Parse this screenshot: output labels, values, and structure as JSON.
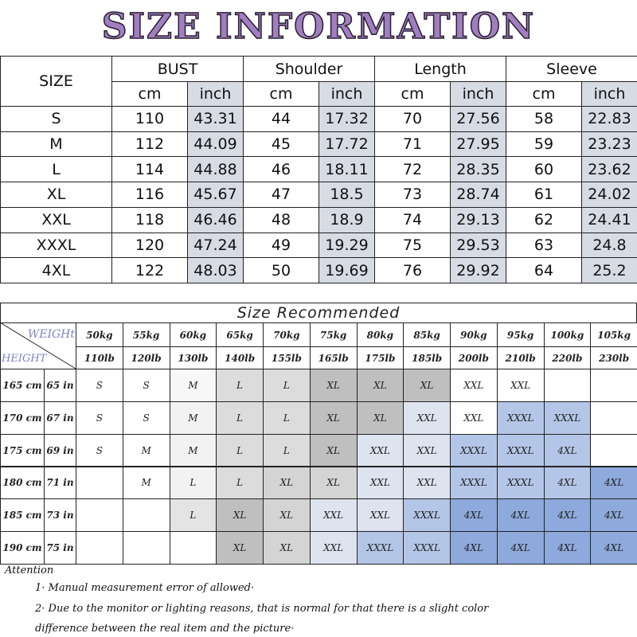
{
  "title": "SIZE INFORMATION",
  "size_table": {
    "size_header": "SIZE",
    "groups": [
      "BUST",
      "Shoulder",
      "Length",
      "Sleeve"
    ],
    "units": [
      "cm",
      "inch"
    ],
    "rows": [
      [
        "S",
        "110",
        "43.31",
        "44",
        "17.32",
        "70",
        "27.56",
        "58",
        "22.83"
      ],
      [
        "M",
        "112",
        "44.09",
        "45",
        "17.72",
        "71",
        "27.95",
        "59",
        "23.23"
      ],
      [
        "L",
        "114",
        "44.88",
        "46",
        "18.11",
        "72",
        "28.35",
        "60",
        "23.62"
      ],
      [
        "XL",
        "116",
        "45.67",
        "47",
        "18.5",
        "73",
        "28.74",
        "61",
        "24.02"
      ],
      [
        "XXL",
        "118",
        "46.46",
        "48",
        "18.9",
        "74",
        "29.13",
        "62",
        "24.41"
      ],
      [
        "XXXL",
        "120",
        "47.24",
        "49",
        "19.29",
        "75",
        "29.53",
        "63",
        "24.8"
      ],
      [
        "4XL",
        "122",
        "48.03",
        "50",
        "19.69",
        "76",
        "29.92",
        "64",
        "25.2"
      ]
    ]
  },
  "recommend": {
    "title": "Size Recommended",
    "weight_label": "WEIGHt",
    "height_label": "HEIGHT",
    "weights_kg": [
      "50kg",
      "55kg",
      "60kg",
      "65kg",
      "70kg",
      "75kg",
      "80kg",
      "85kg",
      "90kg",
      "95kg",
      "100kg",
      "105kg"
    ],
    "weights_lb": [
      "110lb",
      "120lb",
      "130lb",
      "140lb",
      "155lb",
      "165lb",
      "175lb",
      "185lb",
      "200lb",
      "210lb",
      "220lb",
      "230lb"
    ],
    "rows": [
      {
        "cm": "165 cm",
        "in": "65 in",
        "sizes": [
          "S",
          "S",
          "M",
          "L",
          "L",
          "XL",
          "XL",
          "XL",
          "XXL",
          "XXL",
          null,
          null
        ],
        "colors": [
          "#ffffff",
          "#ffffff",
          "#f7f7f7",
          "#dcdcdc",
          "#dcdcdc",
          "#bfbfbf",
          "#bfbfbf",
          "#bfbfbf",
          "#ffffff",
          "#ffffff",
          "#ffffff",
          "#ffffff"
        ]
      },
      {
        "cm": "170 cm",
        "in": "67 in",
        "sizes": [
          "S",
          "S",
          "M",
          "L",
          "L",
          "XL",
          "XL",
          "XXL",
          "XXL",
          "XXXL",
          "XXXL",
          null
        ],
        "colors": [
          "#ffffff",
          "#ffffff",
          "#f2f2f2",
          "#dcdcdc",
          "#dcdcdc",
          "#bfbfbf",
          "#bfbfbf",
          "#dde3ef",
          "#ffffff",
          "#b4c6e7",
          "#b4c6e7",
          "#ffffff"
        ]
      },
      {
        "cm": "175 cm",
        "in": "69 in",
        "sizes": [
          "S",
          "M",
          "M",
          "L",
          "L",
          "XL",
          "XXL",
          "XXL",
          "XXXL",
          "XXXL",
          "4XL",
          null
        ],
        "colors": [
          "#ffffff",
          "#ffffff",
          "#f2f2f2",
          "#dcdcdc",
          "#dcdcdc",
          "#bfbfbf",
          "#dde3ef",
          "#dde3ef",
          "#b4c6e7",
          "#b4c6e7",
          "#b4c6e7",
          "#ffffff"
        ]
      },
      {
        "cm": "180 cm",
        "in": "71 in",
        "sizes": [
          null,
          "M",
          "L",
          "L",
          "XL",
          "XL",
          "XXL",
          "XXL",
          "XXXL",
          "XXXL",
          "4XL",
          "4XL"
        ],
        "colors": [
          "#ffffff",
          "#ffffff",
          "#f2f2f2",
          "#dcdcdc",
          "#d4d4d4",
          "#d4d4d4",
          "#dde3ef",
          "#dde3ef",
          "#b4c6e7",
          "#b4c6e7",
          "#b4c6e7",
          "#8ea9db"
        ]
      },
      {
        "cm": "185 cm",
        "in": "73 in",
        "sizes": [
          null,
          null,
          "L",
          "XL",
          "XL",
          "XXL",
          "XXL",
          "XXXL",
          "4XL",
          "4XL",
          "4XL",
          "4XL"
        ],
        "colors": [
          "#ffffff",
          "#ffffff",
          "#e4e4e4",
          "#bfbfbf",
          "#d4d4d4",
          "#dde3ef",
          "#dde3ef",
          "#b4c6e7",
          "#8ea9db",
          "#8ea9db",
          "#8ea9db",
          "#8ea9db"
        ]
      },
      {
        "cm": "190 cm",
        "in": "75 in",
        "sizes": [
          null,
          null,
          null,
          "XL",
          "XL",
          "XXL",
          "XXXL",
          "XXXL",
          "4XL",
          "4XL",
          "4XL",
          "4XL"
        ],
        "colors": [
          "#ffffff",
          "#ffffff",
          "#ffffff",
          "#bfbfbf",
          "#d4d4d4",
          "#dde3ef",
          "#b4c6e7",
          "#b4c6e7",
          "#8ea9db",
          "#8ea9db",
          "#8ea9db",
          "#8ea9db"
        ]
      }
    ]
  },
  "attention": {
    "title": "Attention",
    "notes": [
      "1· Manual measurement error of allowed·",
      "2·  Due to the monitor or lighting reasons, that is normal for that there is a slight color",
      "difference between the real item and the picture·"
    ]
  }
}
